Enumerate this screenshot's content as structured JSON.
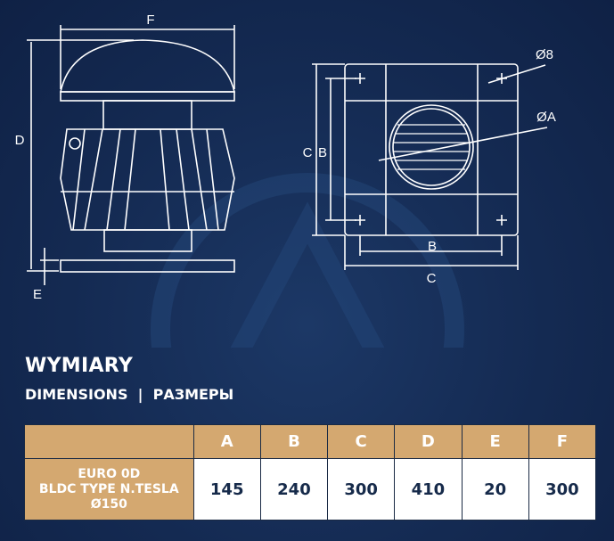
{
  "heading": {
    "title": "WYMIARY",
    "subtitle": "DIMENSIONS  |  РАЗМЕРЫ"
  },
  "drawing": {
    "side_labels": {
      "F": "F",
      "D": "D",
      "E": "E"
    },
    "top_labels": {
      "C_vertical": "C",
      "B_vertical": "B",
      "B_horizontal": "B",
      "C_horizontal": "C",
      "hole": "Ø8",
      "duct": "ØA"
    }
  },
  "table": {
    "headers": [
      "",
      "A",
      "B",
      "C",
      "D",
      "E",
      "F"
    ],
    "rows": [
      {
        "model": [
          "EURO 0D",
          "BLDC TYPE N.TESLA",
          "Ø150"
        ],
        "values": [
          "145",
          "240",
          "300",
          "410",
          "20",
          "300"
        ]
      }
    ]
  },
  "colors": {
    "background": "#142a52",
    "accent": "#d4a870",
    "line": "#ffffff"
  }
}
